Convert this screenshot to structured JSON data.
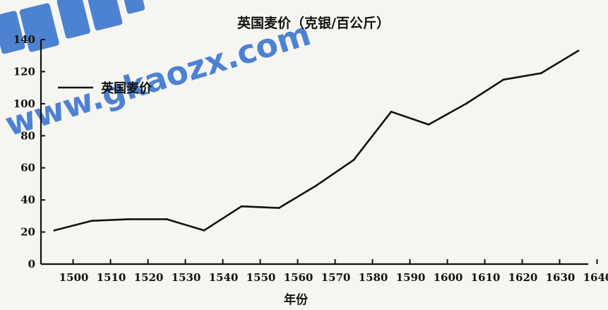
{
  "chart_data": {
    "type": "line",
    "title": "英国麦价（克银/百公斤）",
    "xlabel": "年份",
    "ylabel": "",
    "x_ticks": [
      "1500",
      "1510",
      "1520",
      "1530",
      "1540",
      "1550",
      "1560",
      "1570",
      "1580",
      "1590",
      "1600",
      "1610",
      "1620",
      "1630",
      "1640"
    ],
    "y_ticks": [
      "0",
      "20",
      "40",
      "60",
      "80",
      "100",
      "120",
      "140"
    ],
    "xlim": [
      1495,
      1645
    ],
    "ylim": [
      0,
      140
    ],
    "grid": false,
    "legend": "top-left",
    "series": [
      {
        "name": "英国麦价",
        "color": "#111111",
        "x": [
          1495,
          1505,
          1515,
          1525,
          1535,
          1545,
          1555,
          1565,
          1575,
          1585,
          1595,
          1605,
          1615,
          1625,
          1635
        ],
        "values": [
          21,
          27,
          28,
          28,
          21,
          36,
          35,
          49,
          65,
          95,
          87,
          100,
          115,
          119,
          133
        ]
      }
    ]
  },
  "watermark": {
    "text": "www.gkaozx.com",
    "color": "#1e63c9"
  }
}
